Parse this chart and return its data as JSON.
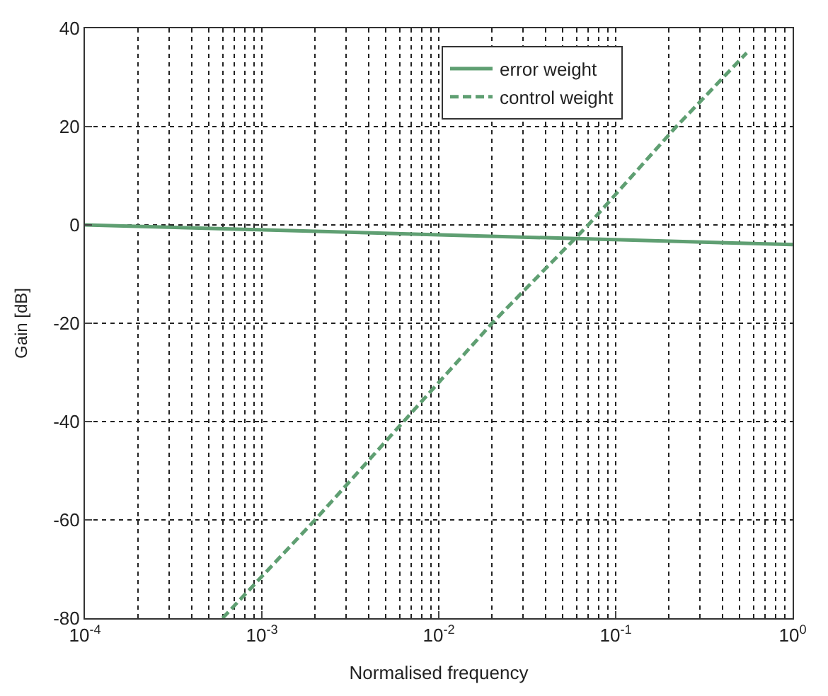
{
  "chart_data": {
    "type": "line",
    "xlabel": "Normalised frequency",
    "ylabel": "Gain [dB]",
    "log": "x",
    "xlim": [
      0.0001,
      1
    ],
    "ylim": [
      -80,
      40
    ],
    "xticks": [
      {
        "value": 0.0001,
        "label": "10$^{-4}$"
      },
      {
        "value": 0.001,
        "label": "10$^{-3}$"
      },
      {
        "value": 0.01,
        "label": "10$^{-2}$"
      },
      {
        "value": 0.1,
        "label": "10$^{-1}$"
      },
      {
        "value": 1,
        "label": "10$^{0}$"
      }
    ],
    "yticks": [
      -80,
      -60,
      -40,
      -20,
      0,
      20,
      40
    ],
    "grid": true,
    "legend": "top right",
    "marker": "none",
    "series": [
      {
        "name": "error weight",
        "color": "#5f9f72",
        "line_style": "solid",
        "x": [
          0.0001,
          0.01,
          1
        ],
        "values": [
          0,
          -2,
          -4
        ]
      },
      {
        "name": "control weight",
        "color": "#5f9f72",
        "line_style": "dashed",
        "x": [
          0.0006,
          0.002,
          0.02,
          0.07,
          0.22,
          0.55
        ],
        "values": [
          -80,
          -60,
          -20,
          0,
          20,
          35
        ]
      }
    ]
  }
}
